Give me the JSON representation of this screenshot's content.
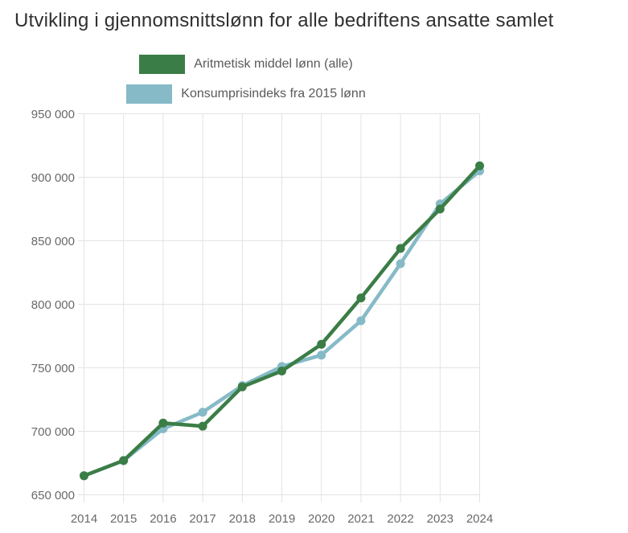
{
  "title": "Utvikling i gjennomsnittslønn for alle bedriftens ansatte samlet",
  "legend": {
    "items": [
      {
        "label": "Aritmetisk middel lønn (alle)",
        "color": "#3b7d46"
      },
      {
        "label": "Konsumprisindeks fra 2015 lønn",
        "color": "#86bac7"
      }
    ]
  },
  "chart_data": {
    "type": "line",
    "title": "Utvikling i gjennomsnittslønn for alle bedriftens ansatte samlet",
    "x": [
      2014,
      2015,
      2016,
      2017,
      2018,
      2019,
      2020,
      2021,
      2022,
      2023,
      2024
    ],
    "x_tick_labels": [
      "2014",
      "2015",
      "2016",
      "2017",
      "2018",
      "2019",
      "2020",
      "2021",
      "2022",
      "2023",
      "2024"
    ],
    "series": [
      {
        "name": "Aritmetisk middel lønn (alle)",
        "color": "#3b7d46",
        "values": [
          665000,
          677000,
          706500,
          704000,
          735000,
          747500,
          768500,
          805000,
          844000,
          875000,
          909000
        ]
      },
      {
        "name": "Konsumprisindeks fra 2015 lønn",
        "color": "#86bac7",
        "values": [
          665000,
          677000,
          702000,
          715000,
          736000,
          751000,
          760000,
          787000,
          832000,
          879000,
          905000
        ]
      }
    ],
    "ylim": [
      650000,
      950000
    ],
    "ytick_step": 50000,
    "y_tick_labels": [
      "650 000",
      "700 000",
      "750 000",
      "800 000",
      "850 000",
      "900 000",
      "950 000"
    ],
    "xlabel": "",
    "ylabel": "",
    "grid": true,
    "legend_position": "top-center",
    "marker": "circle"
  },
  "colors": {
    "background": "#ffffff",
    "grid": "#e3e3e3",
    "axis_text": "#696969",
    "title_text": "#303030",
    "legend_text": "#5a5a5a"
  }
}
